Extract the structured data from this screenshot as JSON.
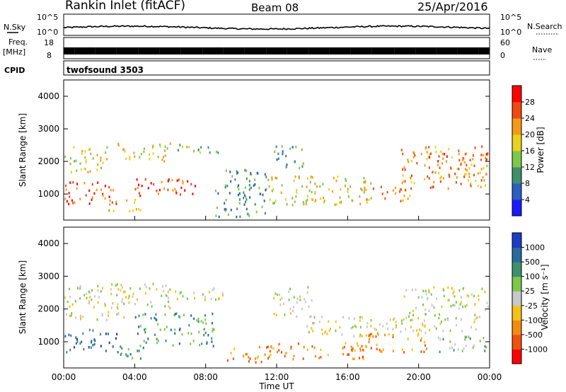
{
  "header": {
    "station": "Rankin Inlet (fitACF)",
    "beam": "Beam 08",
    "date": "25/Apr/2016"
  },
  "top_panels": {
    "nsky_label": "N.Sky",
    "nsky_max": "10^5",
    "nsky_min": "10^0",
    "nsearch_label": "N.Search",
    "nsearch_max": "10^5",
    "nsearch_min": "10^0",
    "freq_label": "Freq.",
    "freq_unit": "[MHz]",
    "freq_max": "18",
    "freq_min": "8",
    "nave_label": "Nave",
    "nave_max": "60",
    "nave_min": "0",
    "cpid_label": "CPID",
    "cpid_value": "twofsound 3503"
  },
  "chart_data": [
    {
      "type": "heatmap",
      "title": "",
      "ylabel": "Slant Range [km]",
      "xlabel": "Time UT",
      "ylim": [
        200,
        4500
      ],
      "xlim": [
        0,
        24
      ],
      "y_ticks": [
        "1000",
        "2000",
        "3000",
        "4000"
      ],
      "colorbar": {
        "label": "Power [dB]",
        "ticks": [
          "4",
          "8",
          "12",
          "16",
          "20",
          "24",
          "28"
        ],
        "colors": [
          "#1a1aff",
          "#2a5fc4",
          "#3e8f6e",
          "#7cc84a",
          "#e8d21e",
          "#f59a18",
          "#f04a10",
          "#ff0000"
        ]
      },
      "echo_regions": [
        {
          "t0": 0.0,
          "t1": 3.2,
          "r0": 700,
          "r1": 1400,
          "level": 6
        },
        {
          "t0": 0.0,
          "t1": 2.5,
          "r0": 1700,
          "r1": 2500,
          "level": 4
        },
        {
          "t0": 3.0,
          "t1": 6.0,
          "r0": 2000,
          "r1": 2600,
          "level": 4
        },
        {
          "t0": 4.0,
          "t1": 7.5,
          "r0": 900,
          "r1": 1500,
          "level": 6
        },
        {
          "t0": 6.2,
          "t1": 9.0,
          "r0": 2300,
          "r1": 2600,
          "level": 3
        },
        {
          "t0": 2.5,
          "t1": 4.5,
          "r0": 500,
          "r1": 900,
          "level": 4
        },
        {
          "t0": 8.5,
          "t1": 11.5,
          "r0": 300,
          "r1": 1800,
          "level": 2
        },
        {
          "t0": 11.5,
          "t1": 17.5,
          "r0": 700,
          "r1": 1600,
          "level": 4
        },
        {
          "t0": 11.8,
          "t1": 13.5,
          "r0": 1800,
          "r1": 2500,
          "level": 2
        },
        {
          "t0": 17.0,
          "t1": 19.5,
          "r0": 800,
          "r1": 1300,
          "level": 5
        },
        {
          "t0": 19.0,
          "t1": 24.0,
          "r0": 1200,
          "r1": 2500,
          "level": 5
        },
        {
          "t0": 20.5,
          "t1": 24.0,
          "r0": 1800,
          "r1": 2300,
          "level": 6
        }
      ]
    },
    {
      "type": "heatmap",
      "title": "",
      "ylabel": "Slant Range [km]",
      "xlabel": "Time UT",
      "ylim": [
        200,
        4500
      ],
      "xlim": [
        0,
        24
      ],
      "y_ticks": [
        "1000",
        "2000",
        "3000",
        "4000"
      ],
      "colorbar": {
        "label": "Velocity [m s⁻¹]",
        "ticks": [
          "1000",
          "500",
          "100",
          "25",
          "-25",
          "-100",
          "-500",
          "-1000"
        ],
        "colors": [
          "#1a3cc8",
          "#2a6a9c",
          "#3e8f6e",
          "#7cc84a",
          "#c8c8c8",
          "#f5c018",
          "#f58a10",
          "#f05010",
          "#ff0000"
        ]
      },
      "echo_regions": [
        {
          "t0": 0.0,
          "t1": 3.2,
          "r0": 700,
          "r1": 1400,
          "level": 1
        },
        {
          "t0": 0.0,
          "t1": 3.5,
          "r0": 1700,
          "r1": 2800,
          "level": 4
        },
        {
          "t0": 3.0,
          "t1": 6.0,
          "r0": 2000,
          "r1": 2800,
          "level": 4
        },
        {
          "t0": 4.0,
          "t1": 8.5,
          "r0": 900,
          "r1": 1900,
          "level": 2
        },
        {
          "t0": 6.0,
          "t1": 9.0,
          "r0": 2300,
          "r1": 2700,
          "level": 4
        },
        {
          "t0": 2.5,
          "t1": 4.5,
          "r0": 500,
          "r1": 900,
          "level": 2
        },
        {
          "t0": 9.0,
          "t1": 11.8,
          "r0": 400,
          "r1": 900,
          "level": 6
        },
        {
          "t0": 11.5,
          "t1": 17.0,
          "r0": 500,
          "r1": 1000,
          "level": 6
        },
        {
          "t0": 11.8,
          "t1": 14.0,
          "r0": 1800,
          "r1": 2700,
          "level": 4
        },
        {
          "t0": 13.5,
          "t1": 19.0,
          "r0": 1200,
          "r1": 1800,
          "level": 4
        },
        {
          "t0": 16.5,
          "t1": 20.5,
          "r0": 700,
          "r1": 1300,
          "level": 6
        },
        {
          "t0": 19.0,
          "t1": 24.0,
          "r0": 1300,
          "r1": 2700,
          "level": 4
        },
        {
          "t0": 21.0,
          "t1": 24.0,
          "r0": 700,
          "r1": 1200,
          "level": 3
        }
      ]
    }
  ],
  "time_axis": {
    "ticks": [
      "00:00",
      "04:00",
      "08:00",
      "12:00",
      "16:00",
      "20:00",
      "00:00"
    ],
    "label": "Time UT"
  }
}
